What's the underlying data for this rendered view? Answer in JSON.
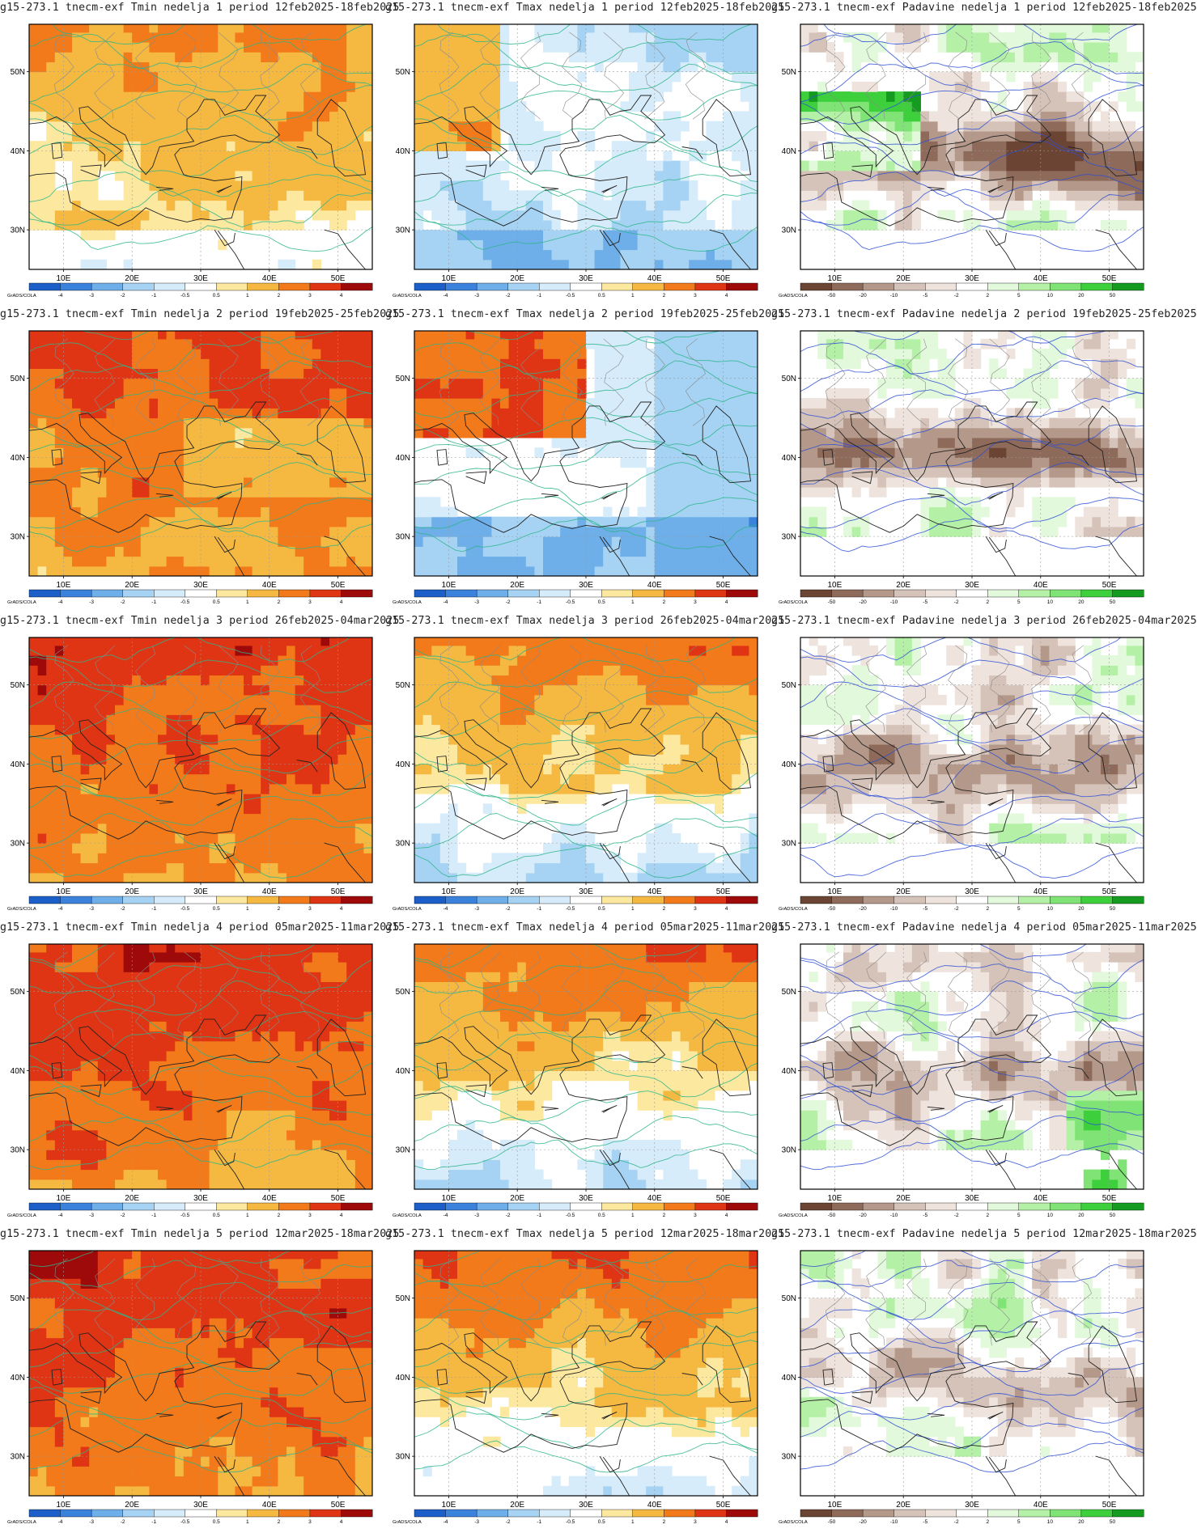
{
  "axes": {
    "lat_ticks": [
      "50N",
      "40N",
      "30N"
    ],
    "lon_ticks": [
      "10E",
      "20E",
      "30E",
      "40E",
      "50E"
    ]
  },
  "colorbar": {
    "credit": "GrADS/COLA",
    "temp_levels": [
      "-4",
      "-3",
      "-2",
      "-1",
      "-0.5",
      "0.5",
      "1",
      "2",
      "3",
      "4"
    ],
    "precip_levels": [
      "-50",
      "-20",
      "-10",
      "-5",
      "-2",
      "2",
      "5",
      "10",
      "20",
      "50"
    ],
    "temp_colors": [
      "#1c5fc9",
      "#3b82dd",
      "#6eaee9",
      "#a6d3f3",
      "#d7ecfa",
      "#ffffff",
      "#fde8a0",
      "#f5b942",
      "#f27a1a",
      "#df3515",
      "#9e0a0a"
    ],
    "precip_colors": [
      "#6b4433",
      "#8e6a5a",
      "#b4988a",
      "#d5c2b8",
      "#efe4dd",
      "#ffffff",
      "#e3f9dc",
      "#b4f0a6",
      "#7fe475",
      "#3ed03c",
      "#159c20"
    ]
  },
  "panels": [
    {
      "title": "g15-273.1 tnecm-exf Tmin nedelja 1 period 12feb2025-18feb2025",
      "var": "tmin",
      "week": 1
    },
    {
      "title": "g15-273.1 tnecm-exf Tmax nedelja 1 period 12feb2025-18feb2025",
      "var": "tmax",
      "week": 1
    },
    {
      "title": "g15-273.1 tnecm-exf Padavine nedelja 1 period 12feb2025-18feb2025",
      "var": "precip",
      "week": 1
    },
    {
      "title": "g15-273.1 tnecm-exf Tmin nedelja 2 period 19feb2025-25feb2025",
      "var": "tmin",
      "week": 2
    },
    {
      "title": "g15-273.1 tnecm-exf Tmax nedelja 2 period 19feb2025-25feb2025",
      "var": "tmax",
      "week": 2
    },
    {
      "title": "g15-273.1 tnecm-exf Padavine nedelja 2 period 19feb2025-25feb2025",
      "var": "precip",
      "week": 2
    },
    {
      "title": "g15-273.1 tnecm-exf Tmin nedelja 3 period 26feb2025-04mar2025",
      "var": "tmin",
      "week": 3
    },
    {
      "title": "g15-273.1 tnecm-exf Tmax nedelja 3 period 26feb2025-04mar2025",
      "var": "tmax",
      "week": 3
    },
    {
      "title": "g15-273.1 tnecm-exf Padavine nedelja 3 period 26feb2025-04mar2025",
      "var": "precip",
      "week": 3
    },
    {
      "title": "g15-273.1 tnecm-exf Tmin nedelja 4 period 05mar2025-11mar2025",
      "var": "tmin",
      "week": 4
    },
    {
      "title": "g15-273.1 tnecm-exf Tmax nedelja 4 period 05mar2025-11mar2025",
      "var": "tmax",
      "week": 4
    },
    {
      "title": "g15-273.1 tnecm-exf Padavine nedelja 4 period 05mar2025-11mar2025",
      "var": "precip",
      "week": 4
    },
    {
      "title": "g15-273.1 tnecm-exf Tmin nedelja 5 period 12mar2025-18mar2025",
      "var": "tmin",
      "week": 5
    },
    {
      "title": "g15-273.1 tnecm-exf Tmax nedelja 5 period 12mar2025-18mar2025",
      "var": "tmax",
      "week": 5
    },
    {
      "title": "g15-273.1 tnecm-exf Padavine nedelja 5 period 12mar2025-18mar2025",
      "var": "precip",
      "week": 5
    }
  ]
}
